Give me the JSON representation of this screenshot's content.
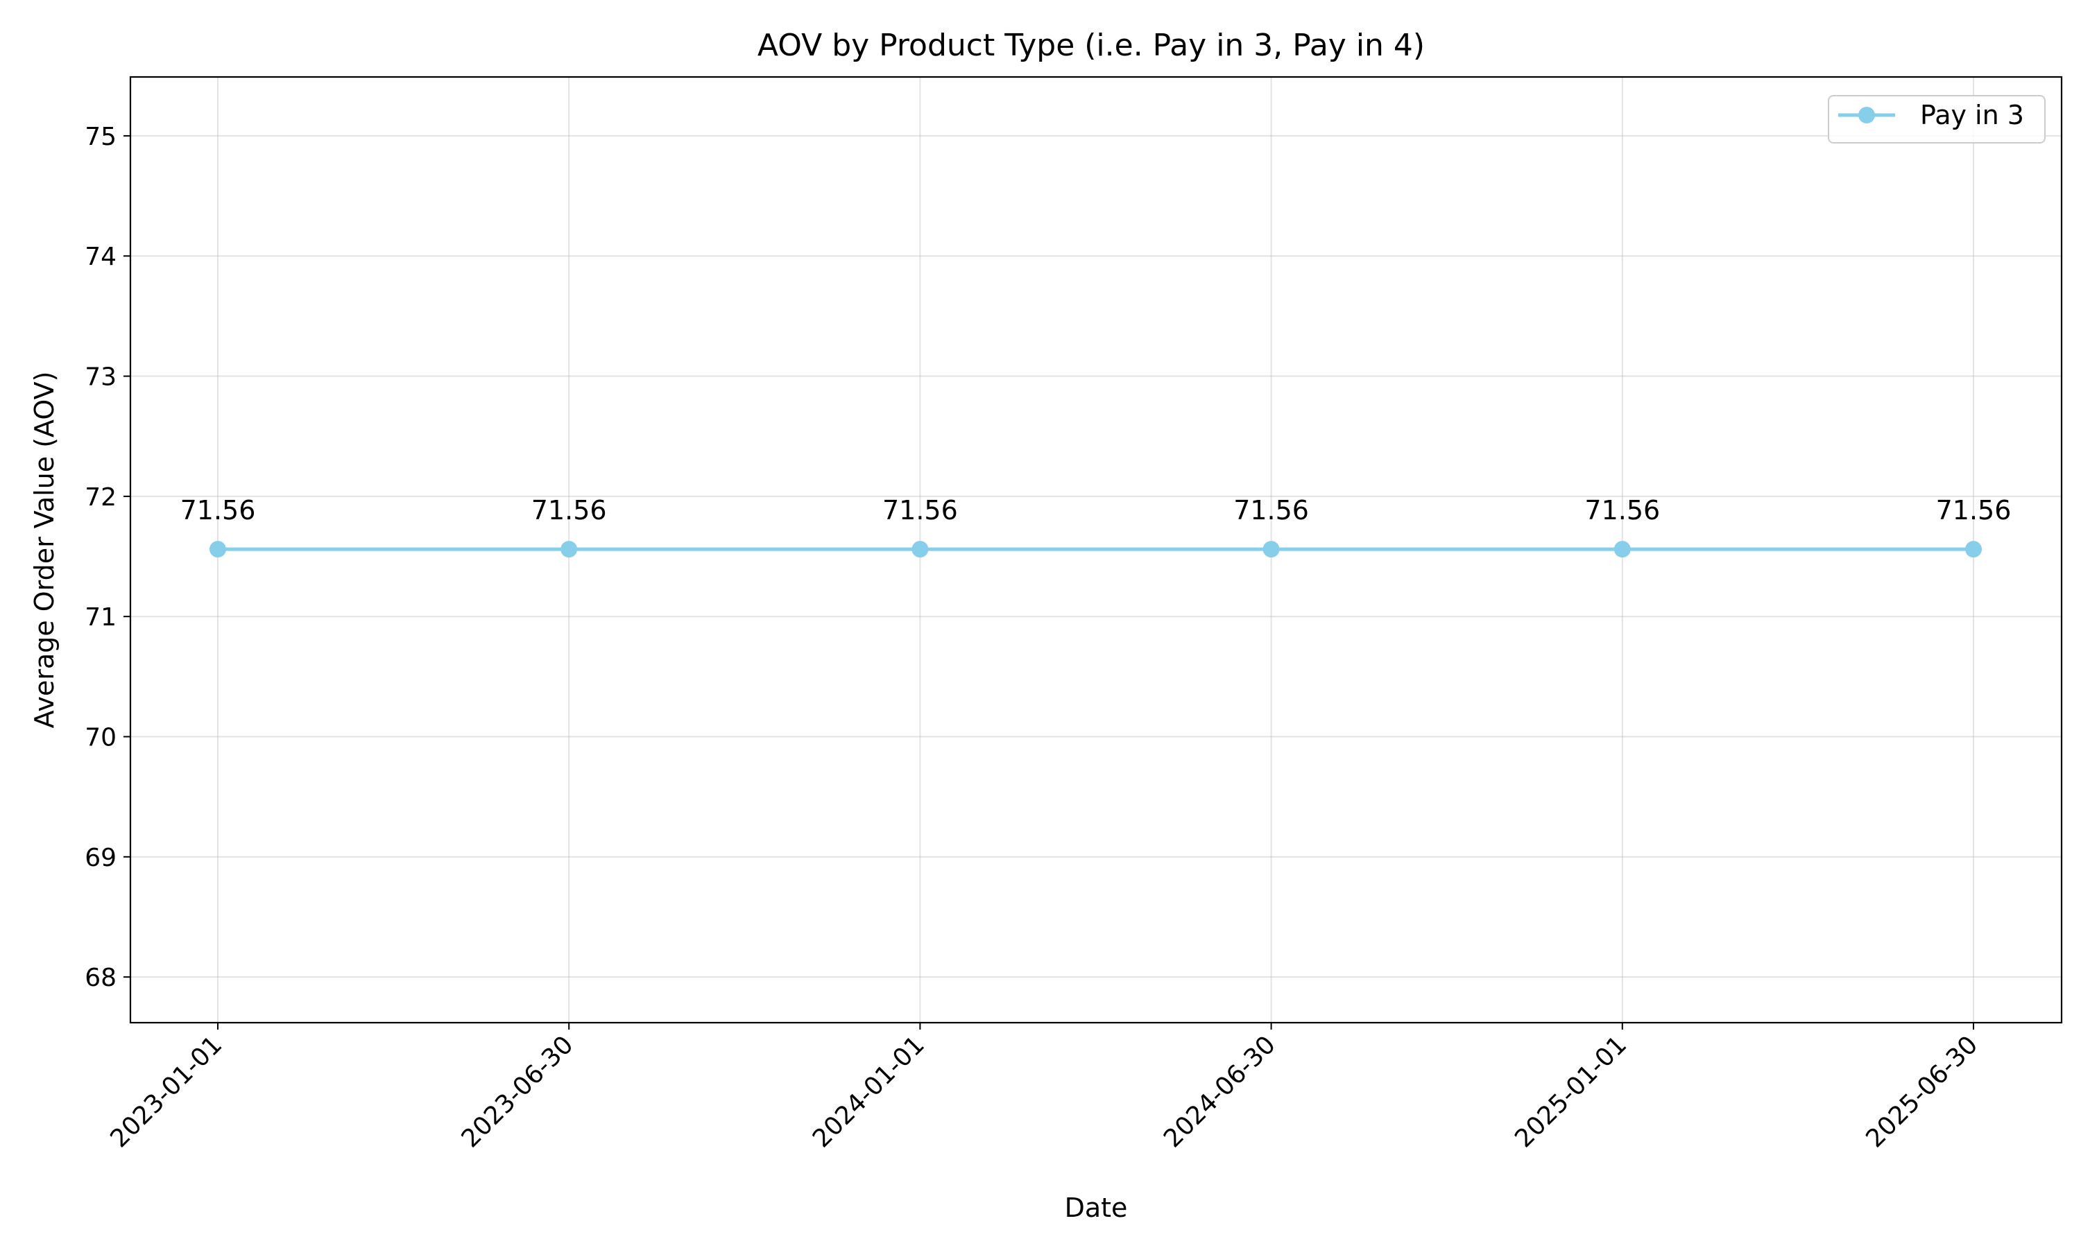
{
  "chart_data": {
    "type": "line",
    "title": "AOV by Product Type (i.e. Pay in 3, Pay in 4)",
    "xlabel": "Date",
    "ylabel": "Average Order Value (AOV)",
    "x": [
      "2023-01-01",
      "2023-06-30",
      "2024-01-01",
      "2024-06-30",
      "2025-01-01",
      "2025-06-30"
    ],
    "ylim": [
      67.62,
      75.49
    ],
    "yticks": [
      68,
      69,
      70,
      71,
      72,
      73,
      74,
      75
    ],
    "grid": true,
    "legend_position": "top-right",
    "x_tick_rotation": "45 degrees",
    "series": [
      {
        "name": "Pay in 3",
        "color": "#87ceeb",
        "marker": "circle",
        "values": [
          71.56,
          71.56,
          71.56,
          71.56,
          71.56,
          71.56
        ],
        "data_labels": [
          "71.56",
          "71.56",
          "71.56",
          "71.56",
          "71.56",
          "71.56"
        ]
      }
    ]
  }
}
